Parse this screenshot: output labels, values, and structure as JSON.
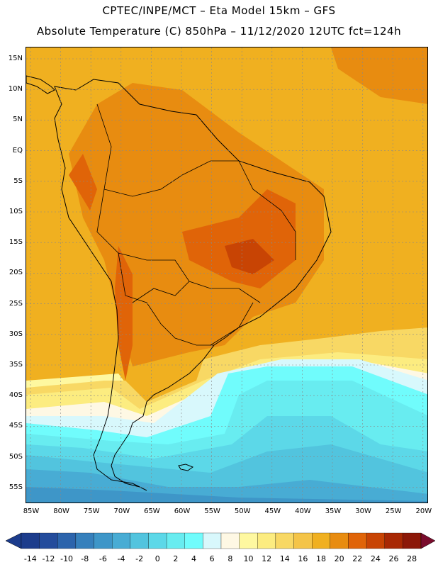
{
  "header": {
    "line1": "CPTEC/INPE/MCT –   Eta Model 15km – GFS",
    "line2": "Absolute Temperature (C) 850hPa – 11/12/2020 12UTC fct=124h"
  },
  "map": {
    "lat_labels": [
      "15N",
      "10N",
      "5N",
      "EQ",
      "5S",
      "10S",
      "15S",
      "20S",
      "25S",
      "30S",
      "35S",
      "40S",
      "45S",
      "50S",
      "55S"
    ],
    "lon_labels": [
      "85W",
      "80W",
      "75W",
      "70W",
      "65W",
      "60W",
      "55W",
      "50W",
      "45W",
      "40W",
      "35W",
      "30W",
      "25W",
      "20W"
    ]
  },
  "colorbar": {
    "values": [
      "-14",
      "-12",
      "-10",
      "-8",
      "-6",
      "-4",
      "-2",
      "0",
      "2",
      "4",
      "6",
      "8",
      "10",
      "12",
      "14",
      "16",
      "18",
      "20",
      "22",
      "24",
      "26",
      "28"
    ],
    "colors": [
      "#7a0c0c",
      "#1c3c8c",
      "#244c9c",
      "#2c64ac",
      "#3680bc",
      "#3e96c8",
      "#48acd4",
      "#52c4de",
      "#5cd8e8",
      "#68ecf0",
      "#70fcfc",
      "#d8f8fc",
      "#fef8e4",
      "#fef8a0",
      "#fcec80",
      "#f8d864",
      "#f4c448",
      "#f0b020",
      "#e88c10",
      "#e06408",
      "#c84404",
      "#a82804",
      "#8c1808",
      "#6c1010"
    ]
  }
}
